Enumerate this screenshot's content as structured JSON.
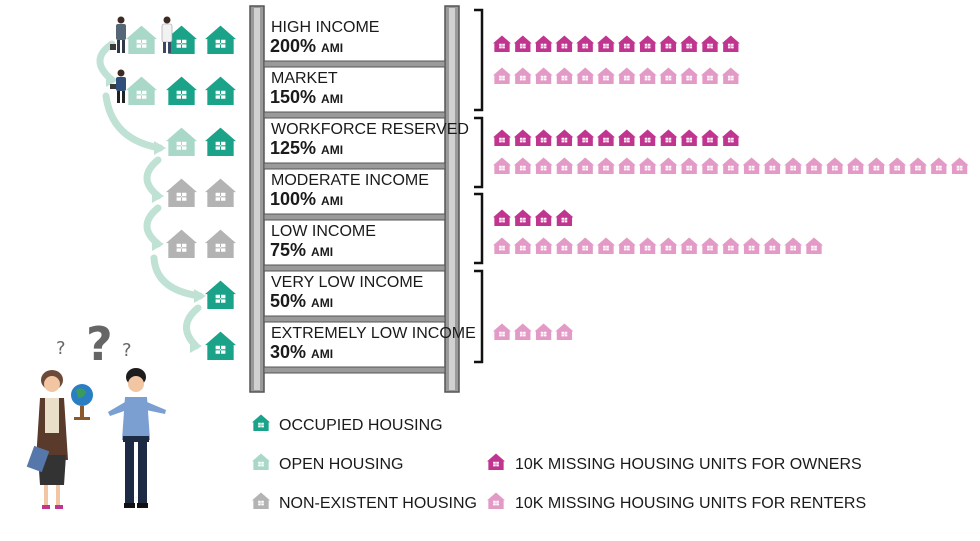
{
  "colors": {
    "occupied": "#1aa388",
    "open": "#a9d8c8",
    "nonexistent": "#b3b3b3",
    "owner": "#c0358f",
    "renter": "#e39ac6",
    "ladder": "#9a9a9a",
    "ladder_dark": "#555555",
    "arrow": "#bfe2d4"
  },
  "ladder_rungs": [
    {
      "name": "HIGH INCOME",
      "pct": "200%",
      "ami": "AMI"
    },
    {
      "name": "MARKET",
      "pct": "150%",
      "ami": "AMI"
    },
    {
      "name": "WORKFORCE RESERVED",
      "pct": "125%",
      "ami": "AMI"
    },
    {
      "name": "MODERATE INCOME",
      "pct": "100%",
      "ami": "AMI"
    },
    {
      "name": "LOW INCOME",
      "pct": "75%",
      "ami": "AMI"
    },
    {
      "name": "VERY LOW INCOME",
      "pct": "50%",
      "ami": "AMI"
    },
    {
      "name": "EXTREMELY LOW INCOME",
      "pct": "30%",
      "ami": "AMI"
    }
  ],
  "left_houses": [
    [
      "open",
      "occupied",
      "occupied"
    ],
    [
      "open",
      "occupied",
      "occupied"
    ],
    [
      "open",
      "occupied"
    ],
    [
      "nonexistent",
      "nonexistent"
    ],
    [
      "nonexistent",
      "nonexistent"
    ],
    [
      "occupied"
    ],
    [
      "occupied"
    ]
  ],
  "legend": {
    "occupied": "OCCUPIED HOUSING",
    "open": "OPEN HOUSING",
    "nonexistent": "NON-EXISTENT HOUSING",
    "owner": "10K MISSING HOUSING UNITS FOR OWNERS",
    "renter": "10K MISSING HOUSING UNITS FOR RENTERS"
  },
  "chart_data": {
    "type": "bar",
    "unit": "10K missing housing units",
    "groups": [
      {
        "rungs": [
          "HIGH INCOME 200% AMI",
          "MARKET 150% AMI"
        ],
        "owners": 12,
        "renters": 12.3
      },
      {
        "rungs": [
          "WORKFORCE RESERVED 125% AMI",
          "MODERATE INCOME 100% AMI"
        ],
        "owners": 12,
        "renters": 23
      },
      {
        "rungs": [
          "LOW INCOME 75% AMI"
        ],
        "owners": 4.5,
        "renters": 16
      },
      {
        "rungs": [
          "VERY LOW INCOME 50% AMI",
          "EXTREMELY LOW INCOME 30% AMI"
        ],
        "owners": 0.4,
        "renters": 4
      }
    ],
    "series": [
      {
        "name": "10K MISSING HOUSING UNITS FOR OWNERS",
        "color": "#c0358f"
      },
      {
        "name": "10K MISSING HOUSING UNITS FOR RENTERS",
        "color": "#e39ac6"
      }
    ]
  }
}
